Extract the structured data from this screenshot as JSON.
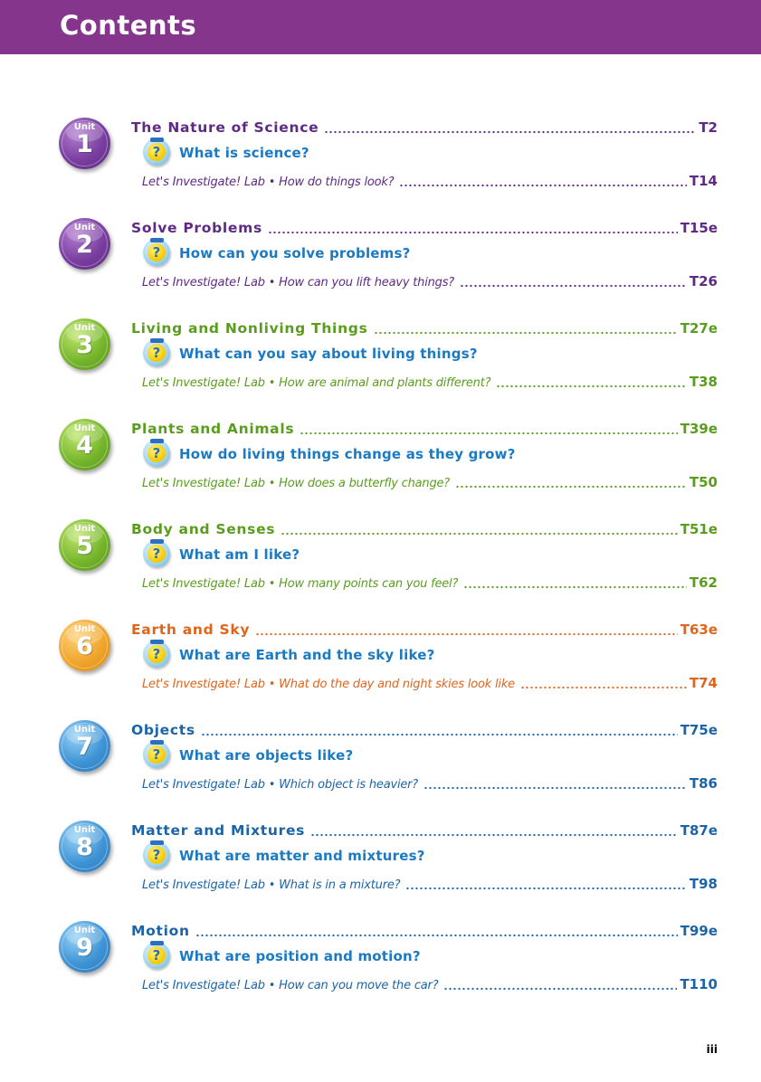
{
  "header": {
    "title": "Contents",
    "bar_color": "#86358c"
  },
  "units": [
    {
      "badge_label": "Unit",
      "number": "1",
      "theme": "purple",
      "title": "The Nature of Science",
      "title_page": "T2",
      "question": "What is science?",
      "lab_prefix": "Let's Investigate! Lab • ",
      "lab_question": "How do things look?",
      "lab_page": "T14",
      "title_color": "#5e2a84",
      "lab_color": "#5e2a84"
    },
    {
      "badge_label": "Unit",
      "number": "2",
      "theme": "purple",
      "title": "Solve Problems",
      "title_page": "T15e",
      "question": "How can you solve problems?",
      "lab_prefix": "Let's Investigate! Lab • ",
      "lab_question": "How can you lift heavy things?",
      "lab_page": "T26",
      "title_color": "#5e2a84",
      "lab_color": "#5e2a84"
    },
    {
      "badge_label": "Unit",
      "number": "3",
      "theme": "green",
      "title": "Living and Nonliving Things",
      "title_page": "T27e",
      "question": "What can you say about living things?",
      "lab_prefix": "Let's Investigate! Lab • ",
      "lab_question": "How are animal and plants different?",
      "lab_page": "T38",
      "title_color": "#5a9d1e",
      "lab_color": "#5a9d1e"
    },
    {
      "badge_label": "Unit",
      "number": "4",
      "theme": "green",
      "title": "Plants and Animals",
      "title_page": "T39e",
      "question": "How do living things change as they grow?",
      "lab_prefix": "Let's Investigate! Lab • ",
      "lab_question": "How does a butterfly change?",
      "lab_page": "T50",
      "title_color": "#5a9d1e",
      "lab_color": "#5a9d1e"
    },
    {
      "badge_label": "Unit",
      "number": "5",
      "theme": "green",
      "title": "Body and Senses",
      "title_page": "T51e",
      "question": "What am I like?",
      "lab_prefix": "Let's Investigate! Lab • ",
      "lab_question": "How many points can you feel?",
      "lab_page": "T62",
      "title_color": "#5a9d1e",
      "lab_color": "#5a9d1e"
    },
    {
      "badge_label": "Unit",
      "number": "6",
      "theme": "orange",
      "title": "Earth and Sky",
      "title_page": "T63e",
      "question": "What are Earth and the sky like?",
      "lab_prefix": "Let's Investigate! Lab • ",
      "lab_question": "What do the day and night skies look like",
      "lab_page": "T74",
      "title_color": "#e0651c",
      "lab_color": "#e0651c"
    },
    {
      "badge_label": "Unit",
      "number": "7",
      "theme": "blue",
      "title": "Objects",
      "title_page": "T75e",
      "question": "What are objects like?",
      "lab_prefix": "Let's Investigate! Lab • ",
      "lab_question": "Which object is heavier?",
      "lab_page": "T86",
      "title_color": "#1c64a8",
      "lab_color": "#1c64a8"
    },
    {
      "badge_label": "Unit",
      "number": "8",
      "theme": "blue",
      "title": "Matter and Mixtures",
      "title_page": "T87e",
      "question": "What are matter and mixtures?",
      "lab_prefix": "Let's Investigate! Lab • ",
      "lab_question": "What is in a mixture?",
      "lab_page": "T98",
      "title_color": "#1c64a8",
      "lab_color": "#1c64a8"
    },
    {
      "badge_label": "Unit",
      "number": "9",
      "theme": "blue",
      "title": "Motion",
      "title_page": "T99e",
      "question": "What are position and motion?",
      "lab_prefix": "Let's Investigate! Lab • ",
      "lab_question": "How can you move the car?",
      "lab_page": "T110",
      "title_color": "#1c64a8",
      "lab_color": "#1c64a8"
    }
  ],
  "question_icon": "question-mark-icon",
  "footer": {
    "page_number": "iii"
  }
}
